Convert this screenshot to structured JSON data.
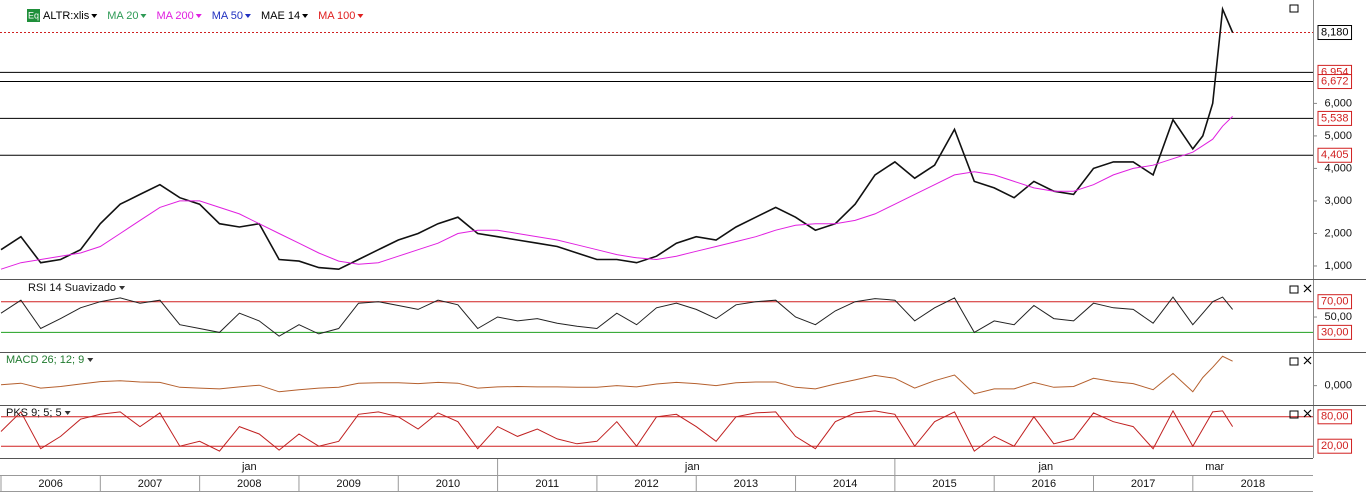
{
  "chart_data": [
    {
      "type": "line",
      "badge": "Eq",
      "legend": [
        {
          "name": "ALTR:xlis",
          "color": "#000000"
        },
        {
          "name": "MA 20",
          "color": "#2e9a55"
        },
        {
          "name": "MA 200",
          "color": "#e020e0"
        },
        {
          "name": "MA 50",
          "color": "#2030c0"
        },
        {
          "name": "MAE 14",
          "color": "#000000"
        },
        {
          "name": "MA 100",
          "color": "#e02020"
        }
      ],
      "x": [
        2006.0,
        2006.2,
        2006.4,
        2006.6,
        2006.8,
        2007.0,
        2007.2,
        2007.4,
        2007.6,
        2007.8,
        2008.0,
        2008.2,
        2008.4,
        2008.6,
        2008.8,
        2009.0,
        2009.2,
        2009.4,
        2009.6,
        2009.8,
        2010.0,
        2010.2,
        2010.4,
        2010.6,
        2010.8,
        2011.0,
        2011.2,
        2011.4,
        2011.6,
        2011.8,
        2012.0,
        2012.2,
        2012.4,
        2012.6,
        2012.8,
        2013.0,
        2013.2,
        2013.4,
        2013.6,
        2013.8,
        2014.0,
        2014.2,
        2014.4,
        2014.6,
        2014.8,
        2015.0,
        2015.2,
        2015.4,
        2015.6,
        2015.8,
        2016.0,
        2016.2,
        2016.4,
        2016.6,
        2016.8,
        2017.0,
        2017.2,
        2017.4,
        2017.6,
        2017.8,
        2018.0,
        2018.1,
        2018.2,
        2018.3,
        2018.4
      ],
      "series": [
        {
          "color": "#111111",
          "values": [
            1500,
            1900,
            1100,
            1200,
            1500,
            2300,
            2900,
            3200,
            3500,
            3100,
            2900,
            2300,
            2200,
            2300,
            1200,
            1150,
            950,
            900,
            1200,
            1500,
            1800,
            2000,
            2300,
            2500,
            2000,
            1900,
            1800,
            1700,
            1600,
            1400,
            1200,
            1200,
            1100,
            1300,
            1700,
            1900,
            1800,
            2200,
            2500,
            2800,
            2500,
            2100,
            2300,
            2900,
            3800,
            4200,
            3700,
            4100,
            5200,
            3600,
            3400,
            3100,
            3600,
            3300,
            3200,
            4000,
            4200,
            4200,
            3800,
            5500,
            4600,
            5000,
            6000,
            8900,
            8180
          ]
        },
        {
          "color": "#e020e0",
          "values": [
            900,
            1100,
            1200,
            1300,
            1400,
            1600,
            2000,
            2400,
            2800,
            3000,
            3000,
            2800,
            2600,
            2300,
            2000,
            1700,
            1400,
            1150,
            1050,
            1100,
            1300,
            1500,
            1700,
            2000,
            2100,
            2100,
            2000,
            1900,
            1800,
            1650,
            1500,
            1350,
            1250,
            1200,
            1300,
            1450,
            1600,
            1750,
            1900,
            2100,
            2250,
            2300,
            2300,
            2400,
            2600,
            2900,
            3200,
            3500,
            3800,
            3900,
            3800,
            3600,
            3400,
            3300,
            3300,
            3500,
            3800,
            4000,
            4100,
            4300,
            4500,
            4700,
            4900,
            5300,
            5600
          ]
        }
      ],
      "ylim": [
        630,
        9180
      ],
      "yticks": [
        {
          "value": 1000,
          "label": "1,000"
        },
        {
          "value": 2000,
          "label": "2,000"
        },
        {
          "value": 3000,
          "label": "3,000"
        },
        {
          "value": 4000,
          "label": "4,000"
        },
        {
          "value": 5000,
          "label": "5,000"
        },
        {
          "value": 6000,
          "label": "6,000"
        }
      ],
      "levels": [
        {
          "value": 6954,
          "label": "6,954"
        },
        {
          "value": 6672,
          "label": "6,672"
        },
        {
          "value": 5538,
          "label": "5,538"
        },
        {
          "value": 4405,
          "label": "4,405"
        }
      ],
      "last": {
        "value": 8180,
        "label": "8,180"
      },
      "xlim": [
        2006,
        2019.21
      ],
      "xticks": [
        2006,
        2007,
        2008,
        2009,
        2010,
        2011,
        2012,
        2013,
        2014,
        2015,
        2016,
        2017,
        2018
      ],
      "x2ticks": [
        2011,
        2015
      ],
      "x2labels": [
        {
          "value": 2008.5,
          "label": "jan"
        },
        {
          "value": 2012.96,
          "label": "jan"
        },
        {
          "value": 2016.52,
          "label": "jan"
        },
        {
          "value": 2018.22,
          "label": "mar"
        }
      ]
    },
    {
      "type": "line",
      "title": "RSI 14 Suavizado",
      "series": [
        {
          "color": "#222222",
          "values": [
            55,
            72,
            35,
            48,
            62,
            70,
            75,
            68,
            72,
            40,
            35,
            30,
            55,
            45,
            25,
            40,
            28,
            35,
            68,
            70,
            65,
            60,
            72,
            66,
            35,
            50,
            45,
            48,
            42,
            38,
            35,
            55,
            40,
            62,
            68,
            60,
            48,
            66,
            70,
            72,
            50,
            40,
            58,
            70,
            74,
            72,
            45,
            62,
            75,
            30,
            45,
            40,
            65,
            48,
            45,
            68,
            62,
            60,
            42,
            76,
            40,
            55,
            70,
            76,
            60
          ]
        }
      ],
      "ylim": [
        7,
        97
      ],
      "yticks": [
        {
          "value": 70,
          "label": "70,00",
          "color": "#d02020"
        },
        {
          "value": 50,
          "label": "50,00"
        },
        {
          "value": 30,
          "label": "30,00",
          "color": "#20a020"
        }
      ]
    },
    {
      "type": "line",
      "title": "MACD 26; 12; 9",
      "series": [
        {
          "color": "#b5602e",
          "values": [
            20,
            60,
            -60,
            -20,
            40,
            100,
            120,
            90,
            80,
            -40,
            -60,
            -80,
            -30,
            10,
            -150,
            -100,
            -60,
            -40,
            60,
            70,
            70,
            50,
            80,
            60,
            -60,
            -30,
            -20,
            -30,
            -30,
            -40,
            -40,
            0,
            -30,
            40,
            80,
            50,
            0,
            70,
            90,
            90,
            -40,
            -80,
            40,
            140,
            250,
            180,
            -60,
            120,
            260,
            -200,
            -80,
            -80,
            80,
            -40,
            -20,
            180,
            100,
            50,
            -100,
            300,
            -150,
            200,
            450,
            720,
            600
          ]
        }
      ],
      "ylim": [
        -450,
        800
      ],
      "yticks": [
        {
          "value": 0,
          "label": "0,000"
        }
      ]
    },
    {
      "type": "line",
      "title": "PKS 9; 5; 5",
      "series": [
        {
          "color": "#c02020",
          "values": [
            50,
            90,
            15,
            40,
            75,
            85,
            90,
            60,
            88,
            20,
            30,
            10,
            60,
            45,
            12,
            45,
            20,
            30,
            85,
            90,
            80,
            55,
            88,
            70,
            15,
            60,
            40,
            55,
            35,
            25,
            30,
            70,
            20,
            80,
            85,
            60,
            30,
            80,
            88,
            90,
            40,
            15,
            70,
            88,
            92,
            85,
            20,
            70,
            90,
            10,
            40,
            20,
            80,
            25,
            35,
            88,
            70,
            60,
            15,
            92,
            20,
            55,
            90,
            92,
            60
          ]
        }
      ],
      "ylim": [
        -2,
        102
      ],
      "yticks": [
        {
          "value": 80,
          "label": "80,00",
          "color": "#d02020"
        },
        {
          "value": 20,
          "label": "20,00",
          "color": "#d02020"
        }
      ]
    }
  ]
}
